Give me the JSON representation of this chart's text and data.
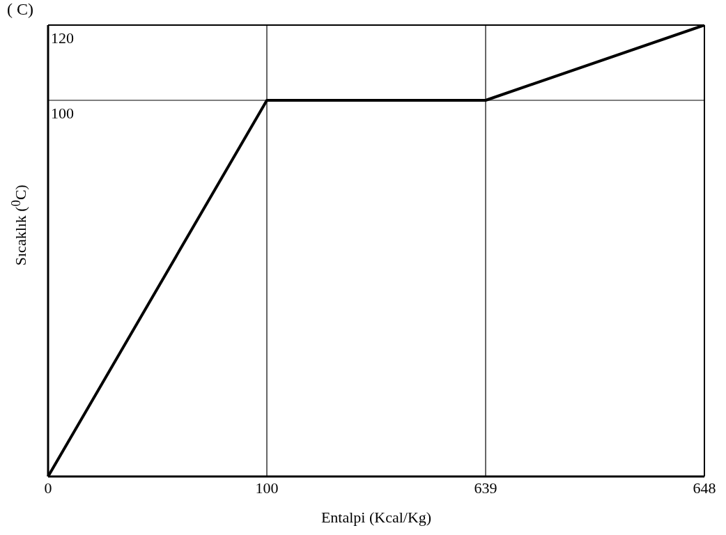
{
  "chart_data": {
    "type": "line",
    "title": "( C)",
    "xlabel": "Entalpi   (Kcal/Kg)",
    "ylabel": "Sıcaklık ($^{0}$C)",
    "categories": [
      "0",
      "100",
      "639",
      "648"
    ],
    "series": [
      {
        "color": "#000000",
        "values": [
          0,
          100,
          100,
          120
        ]
      }
    ],
    "ylim": [
      0,
      120
    ],
    "yticks": [
      100,
      120
    ],
    "grid": true,
    "marker": "none",
    "line_style": "solid"
  }
}
